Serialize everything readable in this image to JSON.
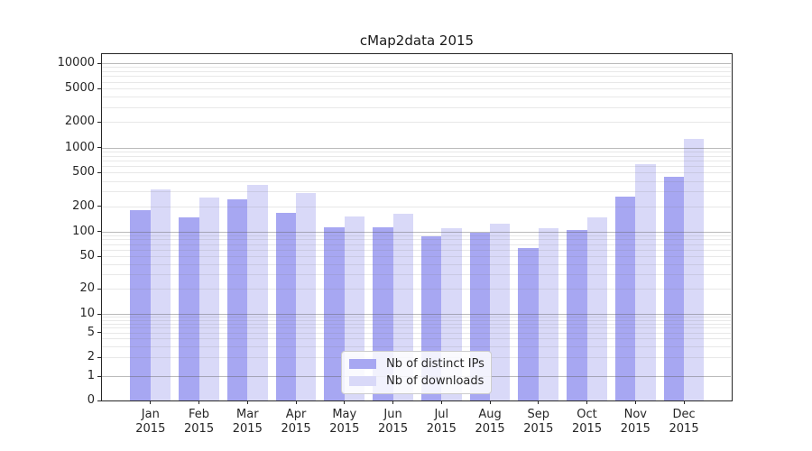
{
  "chart_data": {
    "type": "bar",
    "title": "cMap2data 2015",
    "categories": [
      "Jan",
      "Feb",
      "Mar",
      "Apr",
      "May",
      "Jun",
      "Jul",
      "Aug",
      "Sep",
      "Oct",
      "Nov",
      "Dec"
    ],
    "x_tick_year": "2015",
    "series": [
      {
        "name": "Nb of distinct IPs",
        "color": "#a7a7f2",
        "values": [
          178,
          145,
          240,
          168,
          111,
          111,
          88,
          96,
          62,
          103,
          258,
          448
        ]
      },
      {
        "name": "Nb of downloads",
        "color": "#d9d9f8",
        "values": [
          315,
          250,
          355,
          285,
          150,
          161,
          109,
          123,
          109,
          146,
          628,
          1270
        ]
      }
    ],
    "yscale": "symlog",
    "ylim": [
      0,
      10000
    ],
    "yticks": [
      0,
      1,
      2,
      5,
      10,
      20,
      50,
      100,
      200,
      500,
      1000,
      2000,
      5000,
      10000
    ],
    "grid": true,
    "legend": {
      "position": "lower center"
    }
  },
  "colors": {
    "background": "#ffffff",
    "spine": "#262626",
    "text": "#262626"
  }
}
